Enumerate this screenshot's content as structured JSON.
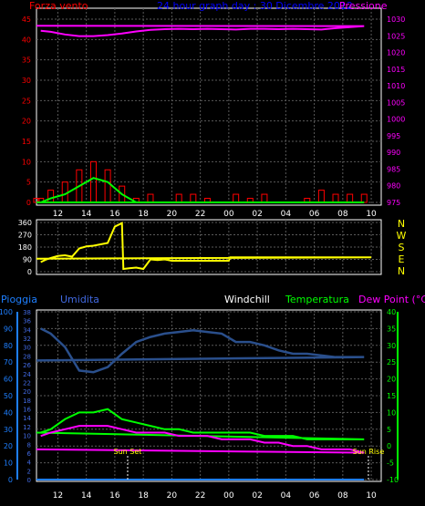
{
  "colors": {
    "bg": "#000000",
    "grid": "#5a5a5a",
    "axis": "#ffffff",
    "wind_label": "#ff0000",
    "title": "#0000ff",
    "pressure": "#ff00ff",
    "wind": "#ff0000",
    "gust": "#00ff00",
    "direction": "#ffff00",
    "compass": "#ffff00",
    "rain": "#1e7fff",
    "humidity": "#4169e1",
    "windchill": "#ffffff",
    "temperature": "#00ff00",
    "dewpoint": "#ff00ff",
    "humidity_line": "#2a4f8c"
  },
  "header": {
    "wind_label": "Forza vento",
    "title": "24 hour graph day : 30 Dicembre 2012",
    "pressure_label": "Pressione"
  },
  "compass": [
    "N",
    "W",
    "S",
    "E",
    "N"
  ],
  "bottom_labels": {
    "rain": "Pioggia",
    "humidity": "Umidita",
    "windchill": "Windchill",
    "temperature": "Temperatura",
    "dewpoint": "Dew Point (°C)"
  },
  "annotations": {
    "sunset": "Sun Set",
    "sunrise": "Sun Rise"
  },
  "hour_ticks": [
    "12",
    "14",
    "16",
    "18",
    "20",
    "22",
    "00",
    "02",
    "04",
    "06",
    "08",
    "10"
  ],
  "chart_data": [
    {
      "type": "line",
      "title": "24 hour graph day : 30 Dicembre 2012",
      "x_hours": [
        10.8,
        11.5,
        12.5,
        13.5,
        14.5,
        15.5,
        16.5,
        17.5,
        18.5,
        19.5,
        20.5,
        21.5,
        22.5,
        23.5,
        0.5,
        1.5,
        2.5,
        3.5,
        4.5,
        5.5,
        6.5,
        7.5,
        8.5,
        9.5,
        10.5
      ],
      "series": [
        {
          "name": "Pressione",
          "axis": "right",
          "values": [
            1026.5,
            1026.2,
            1025.4,
            1024.9,
            1024.9,
            1025.2,
            1025.7,
            1026.3,
            1026.8,
            1027.0,
            1027.1,
            1027.0,
            1027.1,
            1027.0,
            1026.9,
            1027.1,
            1027.1,
            1027.0,
            1027.1,
            1027.0,
            1026.9,
            1027.3,
            1027.6,
            1027.9,
            1028.0
          ]
        },
        {
          "name": "Forza vento",
          "axis": "left",
          "values": [
            1,
            3,
            5,
            8,
            10,
            8,
            4,
            1,
            2,
            0,
            2,
            2,
            1,
            0,
            2,
            1,
            2,
            0,
            0,
            1,
            3,
            2,
            2,
            2,
            1
          ]
        },
        {
          "name": "Raffica",
          "axis": "left",
          "values": [
            0,
            1,
            2,
            4,
            6,
            5,
            2,
            0,
            0,
            0,
            0,
            0,
            0,
            0,
            0,
            0,
            0,
            0,
            0,
            0,
            0,
            0,
            0,
            0,
            0
          ]
        }
      ],
      "ylim_left": [
        0,
        45
      ],
      "yticks_left": [
        0,
        5,
        10,
        15,
        20,
        25,
        30,
        35,
        40,
        45
      ],
      "ylim_right": [
        975,
        1030
      ],
      "yticks_right": [
        975,
        980,
        985,
        990,
        995,
        1000,
        1005,
        1010,
        1015,
        1020,
        1025,
        1030
      ]
    },
    {
      "type": "line",
      "series": [
        {
          "name": "Direzione vento",
          "x_hours": [
            10.8,
            11.2,
            11.5,
            12.0,
            12.5,
            13.0,
            13.5,
            14.0,
            14.5,
            15.0,
            15.5,
            16.0,
            16.5,
            16.6,
            17.0,
            17.5,
            18.0,
            18.5,
            19.0,
            19.5,
            20.0,
            21.0,
            22.0,
            23.0,
            0.0,
            0.1,
            1.0,
            2.0,
            3.0,
            4.0,
            5.0,
            6.0,
            7.0,
            8.0,
            9.0,
            10.0,
            10.5
          ],
          "values": [
            70,
            90,
            100,
            115,
            120,
            110,
            170,
            185,
            190,
            200,
            210,
            330,
            355,
            20,
            25,
            30,
            20,
            90,
            85,
            90,
            80,
            80,
            80,
            80,
            80,
            105,
            105,
            105,
            105,
            105,
            105,
            105,
            105,
            105,
            105,
            105,
            95
          ]
        }
      ],
      "ylim": [
        0,
        360
      ],
      "yticks": [
        0,
        90,
        180,
        270,
        360
      ]
    },
    {
      "type": "line",
      "x_hours": [
        10.8,
        11.5,
        12.5,
        13.5,
        14.5,
        15.5,
        16.5,
        17.5,
        18.5,
        19.5,
        20.5,
        21.5,
        22.5,
        23.5,
        0.5,
        1.5,
        2.5,
        3.5,
        4.5,
        5.5,
        6.5,
        7.5,
        8.5,
        9.5,
        10.5
      ],
      "series": [
        {
          "name": "Umidita",
          "axis": "left_humidity",
          "values": [
            90,
            87,
            79,
            65,
            64,
            67,
            75,
            82,
            85,
            87,
            88,
            89,
            88,
            87,
            82,
            82,
            80,
            77,
            75,
            75,
            74,
            73,
            73,
            73,
            71
          ]
        },
        {
          "name": "Temperatura",
          "axis": "right",
          "values": [
            4,
            5,
            8,
            10,
            10,
            11,
            8,
            7,
            6,
            5,
            5,
            4,
            4,
            4,
            4,
            4,
            3,
            3,
            3,
            2,
            2,
            2,
            2,
            2,
            4
          ]
        },
        {
          "name": "Dew Point (°C)",
          "axis": "right",
          "values": [
            3,
            4,
            5,
            6,
            6,
            6,
            5,
            4,
            4,
            4,
            3,
            3,
            3,
            2,
            2,
            2,
            1,
            1,
            0,
            0,
            -1,
            -1,
            -1,
            -2,
            -1
          ]
        },
        {
          "name": "Pioggia",
          "axis": "left_rain",
          "values": [
            0,
            0,
            0,
            0,
            0,
            0,
            0,
            0,
            0,
            0,
            0,
            0,
            0,
            0,
            0,
            0,
            0,
            0,
            0,
            0,
            0,
            0,
            0,
            0,
            0
          ]
        }
      ],
      "ylim_right": [
        -10,
        40
      ],
      "yticks_right": [
        -10,
        -5,
        0,
        5,
        10,
        15,
        20,
        25,
        30,
        35,
        40
      ],
      "ylim_humidity": [
        0,
        100
      ],
      "yticks_humidity": [
        0,
        10,
        20,
        30,
        40,
        50,
        60,
        70,
        80,
        90,
        100
      ],
      "ylim_rain": [
        0,
        38
      ],
      "yticks_rain": [
        0,
        2,
        4,
        6,
        8,
        10,
        12,
        14,
        16,
        18,
        20,
        22,
        24,
        26,
        28,
        30,
        32,
        34,
        36,
        38
      ],
      "annotations_x_hours": {
        "sunset": 16.9,
        "sunrise": 9.8
      }
    }
  ]
}
